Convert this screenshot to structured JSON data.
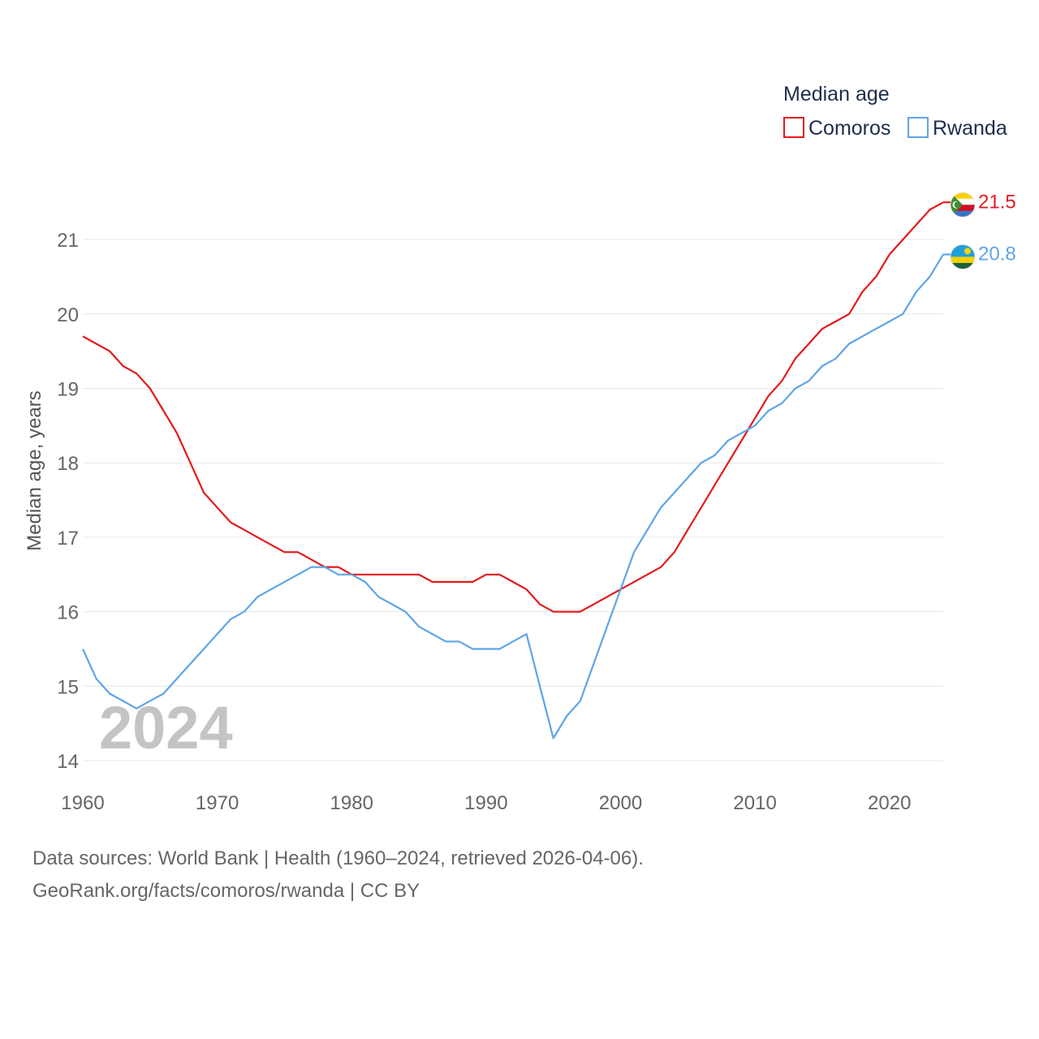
{
  "chart_data": {
    "type": "line",
    "title": "",
    "ylabel": "Median age, years",
    "xlabel": "",
    "xlim": [
      1960,
      2024
    ],
    "ylim": [
      14,
      21.5
    ],
    "x_ticks": [
      1960,
      1970,
      1980,
      1990,
      2000,
      2010,
      2020
    ],
    "y_ticks": [
      14,
      15,
      16,
      17,
      18,
      19,
      20,
      21
    ],
    "grid": true,
    "legend": {
      "title": "Median age",
      "position": "top-right"
    },
    "year_label": "2024",
    "x": [
      1960,
      1961,
      1962,
      1963,
      1964,
      1965,
      1966,
      1967,
      1968,
      1969,
      1970,
      1971,
      1972,
      1973,
      1974,
      1975,
      1976,
      1977,
      1978,
      1979,
      1980,
      1981,
      1982,
      1983,
      1984,
      1985,
      1986,
      1987,
      1988,
      1989,
      1990,
      1991,
      1992,
      1993,
      1994,
      1995,
      1996,
      1997,
      1998,
      1999,
      2000,
      2001,
      2002,
      2003,
      2004,
      2005,
      2006,
      2007,
      2008,
      2009,
      2010,
      2011,
      2012,
      2013,
      2014,
      2015,
      2016,
      2017,
      2018,
      2019,
      2020,
      2021,
      2022,
      2023,
      2024
    ],
    "series": [
      {
        "name": "Comoros",
        "color": "#e31a1c",
        "end_label": "21.5",
        "flag": "comoros-flag-icon",
        "values": [
          19.7,
          19.6,
          19.5,
          19.3,
          19.2,
          19.0,
          18.7,
          18.4,
          18.0,
          17.6,
          17.4,
          17.2,
          17.1,
          17.0,
          16.9,
          16.8,
          16.8,
          16.7,
          16.6,
          16.6,
          16.5,
          16.5,
          16.5,
          16.5,
          16.5,
          16.5,
          16.4,
          16.4,
          16.4,
          16.4,
          16.5,
          16.5,
          16.4,
          16.3,
          16.1,
          16.0,
          16.0,
          16.0,
          16.1,
          16.2,
          16.3,
          16.4,
          16.5,
          16.6,
          16.8,
          17.1,
          17.4,
          17.7,
          18.0,
          18.3,
          18.6,
          18.9,
          19.1,
          19.4,
          19.6,
          19.8,
          19.9,
          20.0,
          20.3,
          20.5,
          20.8,
          21.0,
          21.2,
          21.4,
          21.5
        ]
      },
      {
        "name": "Rwanda",
        "color": "#5ea5e6",
        "end_label": "20.8",
        "flag": "rwanda-flag-icon",
        "values": [
          15.5,
          15.1,
          14.9,
          14.8,
          14.7,
          14.8,
          14.9,
          15.1,
          15.3,
          15.5,
          15.7,
          15.9,
          16.0,
          16.2,
          16.3,
          16.4,
          16.5,
          16.6,
          16.6,
          16.5,
          16.5,
          16.4,
          16.2,
          16.1,
          16.0,
          15.8,
          15.7,
          15.6,
          15.6,
          15.5,
          15.5,
          15.5,
          15.6,
          15.7,
          15.0,
          14.3,
          14.6,
          14.8,
          15.3,
          15.8,
          16.3,
          16.8,
          17.1,
          17.4,
          17.6,
          17.8,
          18.0,
          18.1,
          18.3,
          18.4,
          18.5,
          18.7,
          18.8,
          19.0,
          19.1,
          19.3,
          19.4,
          19.6,
          19.7,
          19.8,
          19.9,
          20.0,
          20.3,
          20.5,
          20.8
        ]
      }
    ]
  },
  "footer": {
    "sources": "Data sources: World Bank | Health (1960–2024, retrieved 2026-04-06).",
    "credit": "GeoRank.org/facts/comoros/rwanda | CC BY"
  }
}
